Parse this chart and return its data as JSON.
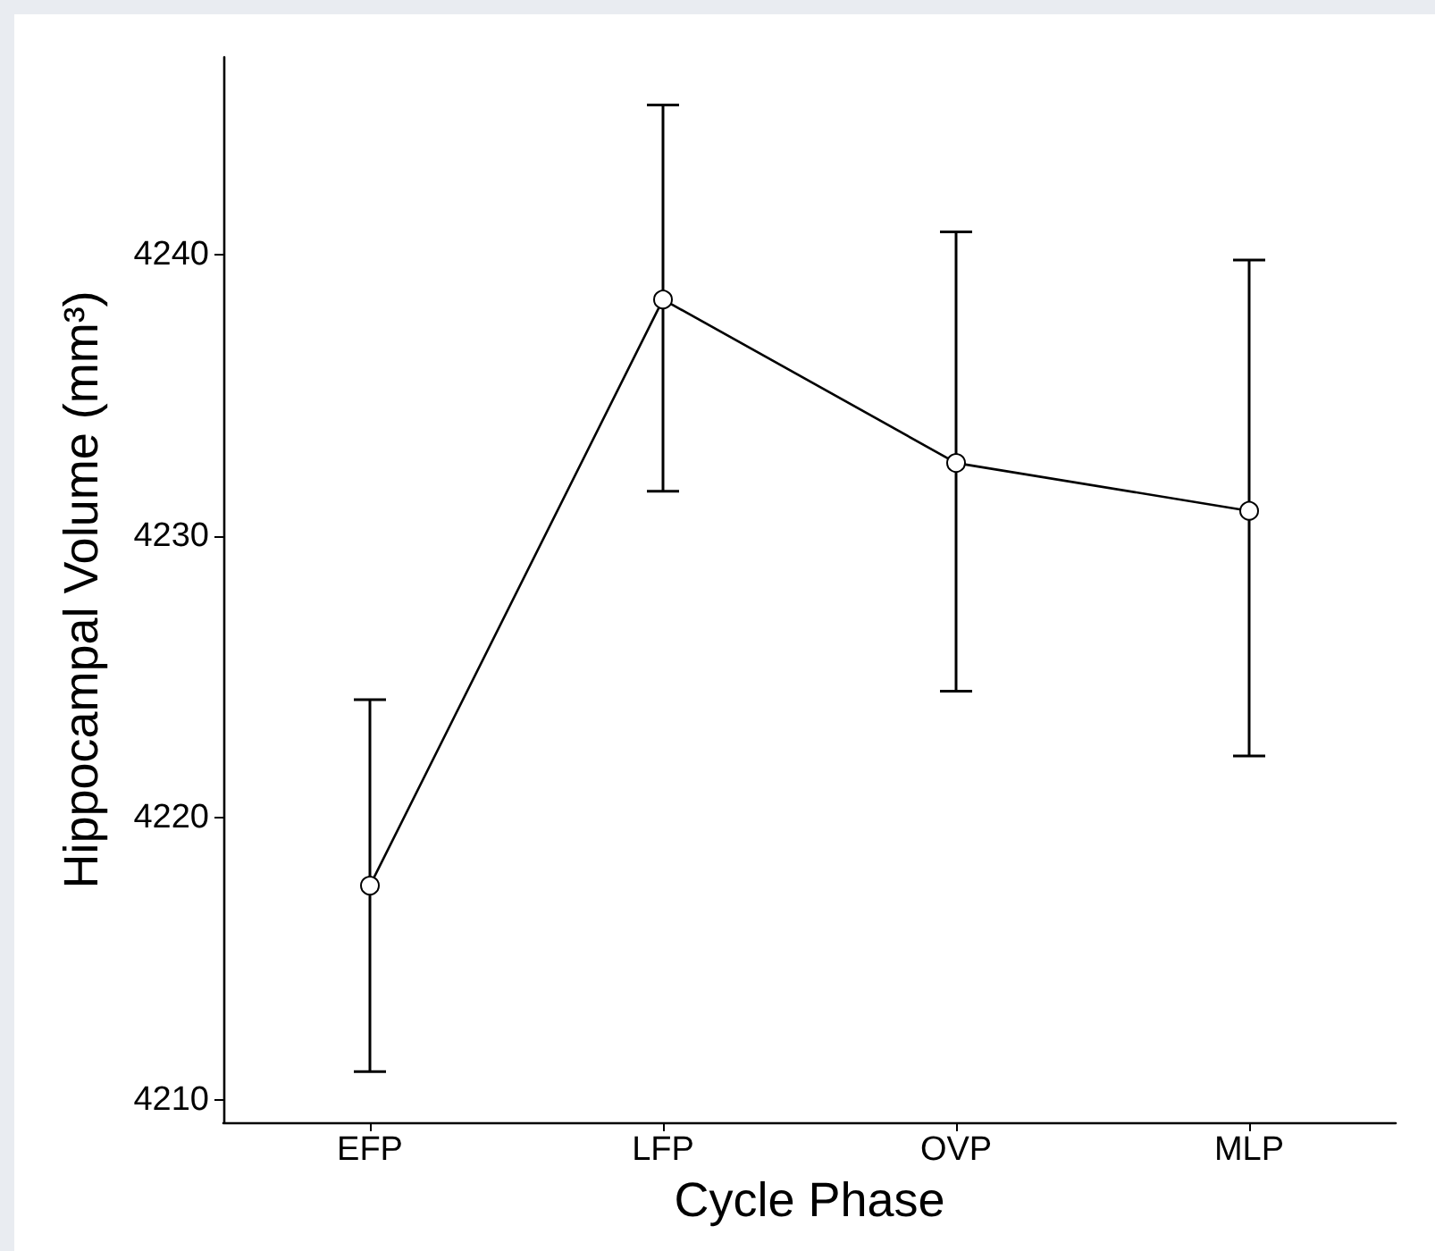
{
  "chart_data": {
    "type": "line",
    "xlabel": "Cycle Phase",
    "ylabel": "Hippocampal Volume (mm³)",
    "categories": [
      "EFP",
      "LFP",
      "OVP",
      "MLP"
    ],
    "series": [
      {
        "color": "#000000",
        "values": [
          4217.6,
          4238.4,
          4232.6,
          4230.9
        ],
        "errors": [
          [
            4211.0,
            4224.2
          ],
          [
            4231.6,
            4245.3
          ],
          [
            4224.5,
            4240.8
          ],
          [
            4222.2,
            4239.8
          ]
        ]
      }
    ],
    "ylim": [
      4209.2,
      4247
    ],
    "yticks": [
      4210,
      4220,
      4230,
      4240
    ],
    "marker": "circle",
    "line_style": "solid"
  }
}
